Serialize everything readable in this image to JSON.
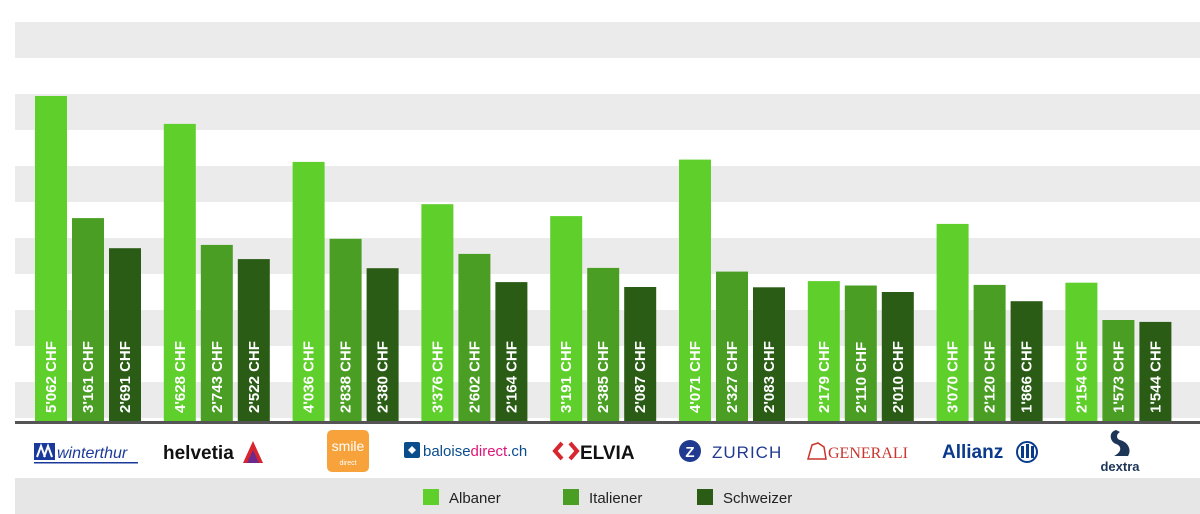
{
  "chart_data": {
    "type": "bar",
    "title": "",
    "xlabel": "",
    "ylabel": "",
    "ylim": [
      0,
      6000
    ],
    "grid": true,
    "legend_position": "bottom-center",
    "categories": [
      "winterthur",
      "helvetia",
      "smile direct",
      "baloisedirect.ch",
      "ELVIA",
      "ZURICH",
      "GENERALI",
      "Allianz",
      "dextra"
    ],
    "series": [
      {
        "name": "Albaner",
        "color": "#5fcf2c",
        "values": [
          5062,
          4628,
          4036,
          3376,
          3191,
          4071,
          2179,
          3070,
          2154
        ],
        "labels": [
          "5'062 CHF",
          "4'628 CHF",
          "4'036 CHF",
          "3'376 CHF",
          "3'191 CHF",
          "4'071 CHF",
          "2'179 CHF",
          "3'070 CHF",
          "2'154 CHF"
        ]
      },
      {
        "name": "Italiener",
        "color": "#4a9e24",
        "values": [
          3161,
          2743,
          2838,
          2602,
          2385,
          2327,
          2110,
          2120,
          1573
        ],
        "labels": [
          "3'161 CHF",
          "2'743 CHF",
          "2'838 CHF",
          "2'602 CHF",
          "2'385 CHF",
          "2'327 CHF",
          "2'110 CHF",
          "2'120 CHF",
          "1'573 CHF"
        ]
      },
      {
        "name": "Schweizer",
        "color": "#2a5c16",
        "values": [
          2691,
          2522,
          2380,
          2164,
          2087,
          2083,
          2010,
          1866,
          1544
        ],
        "labels": [
          "2'691 CHF",
          "2'522 CHF",
          "2'380 CHF",
          "2'164 CHF",
          "2'087 CHF",
          "2'083 CHF",
          "2'010 CHF",
          "1'866 CHF",
          "1'544 CHF"
        ]
      }
    ]
  },
  "logos": {
    "winterthur": "winterthur",
    "helvetia": "helvetia",
    "smile": "smile",
    "smile_sub": "direct",
    "baloise_a": "baloise",
    "baloise_b": "direct",
    "baloise_c": ".ch",
    "elvia": "ELVIA",
    "zurich": "ZURICH",
    "zurich_mark": "Z",
    "generali": "GENERALI",
    "allianz": "Allianz",
    "dextra": "dextra"
  },
  "colors": {
    "stripe": "#ebebeb",
    "baseline": "#555555",
    "legend_band": "#e6e6e6",
    "winterthur_blue": "#1a3a9b",
    "smile_orange": "#f7a23b",
    "baloise_blue": "#0a4d8c",
    "baloise_pink": "#e0157a",
    "elvia_red": "#d8262e",
    "zurich_blue": "#1f3a8f",
    "generali_red": "#c8352c",
    "allianz_blue": "#0a3a8c",
    "dextra_blue": "#1d3557"
  }
}
